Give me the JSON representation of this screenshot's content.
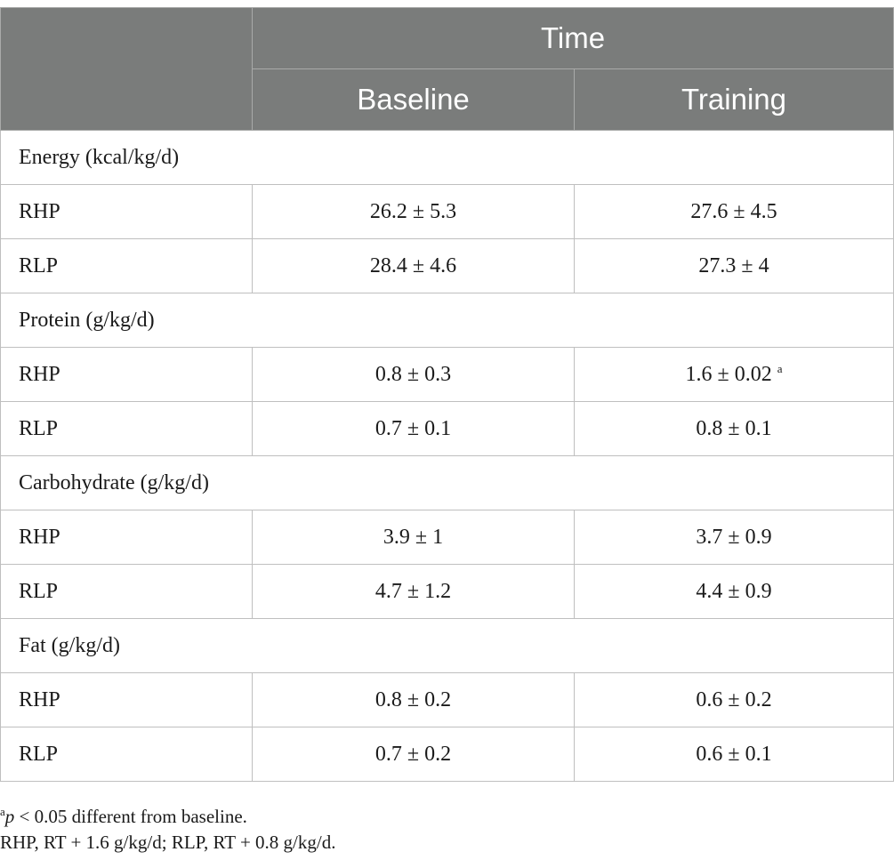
{
  "table": {
    "header": {
      "group_label": "Time",
      "columns": [
        "Baseline",
        "Training"
      ]
    },
    "sections": [
      {
        "title": "Energy (kcal/kg/d)",
        "rows": [
          {
            "label": "RHP",
            "baseline": "26.2 ± 5.3",
            "training": "27.6 ± 4.5",
            "training_mark": ""
          },
          {
            "label": "RLP",
            "baseline": "28.4 ± 4.6",
            "training": "27.3 ± 4",
            "training_mark": ""
          }
        ]
      },
      {
        "title": "Protein (g/kg/d)",
        "rows": [
          {
            "label": "RHP",
            "baseline": "0.8 ± 0.3",
            "training": "1.6 ± 0.02",
            "training_mark": "a"
          },
          {
            "label": "RLP",
            "baseline": "0.7 ± 0.1",
            "training": "0.8 ± 0.1",
            "training_mark": ""
          }
        ]
      },
      {
        "title": "Carbohydrate (g/kg/d)",
        "rows": [
          {
            "label": "RHP",
            "baseline": "3.9 ± 1",
            "training": "3.7 ± 0.9",
            "training_mark": ""
          },
          {
            "label": "RLP",
            "baseline": "4.7 ± 1.2",
            "training": "4.4 ± 0.9",
            "training_mark": ""
          }
        ]
      },
      {
        "title": "Fat (g/kg/d)",
        "rows": [
          {
            "label": "RHP",
            "baseline": "0.8 ± 0.2",
            "training": "0.6 ± 0.2",
            "training_mark": ""
          },
          {
            "label": "RLP",
            "baseline": "0.7 ± 0.2",
            "training": "0.6 ± 0.1",
            "training_mark": ""
          }
        ]
      }
    ]
  },
  "footnotes": {
    "note_a": {
      "mark": "a",
      "variable": "p",
      "text": " < 0.05 different from baseline."
    },
    "abbreviations": "RHP, RT + 1.6 g/kg/d; RLP, RT + 0.8 g/kg/d."
  },
  "colors": {
    "header_background": "#7a7c7b",
    "header_text": "#ffffff",
    "grid_line": "#bfbfbf"
  }
}
